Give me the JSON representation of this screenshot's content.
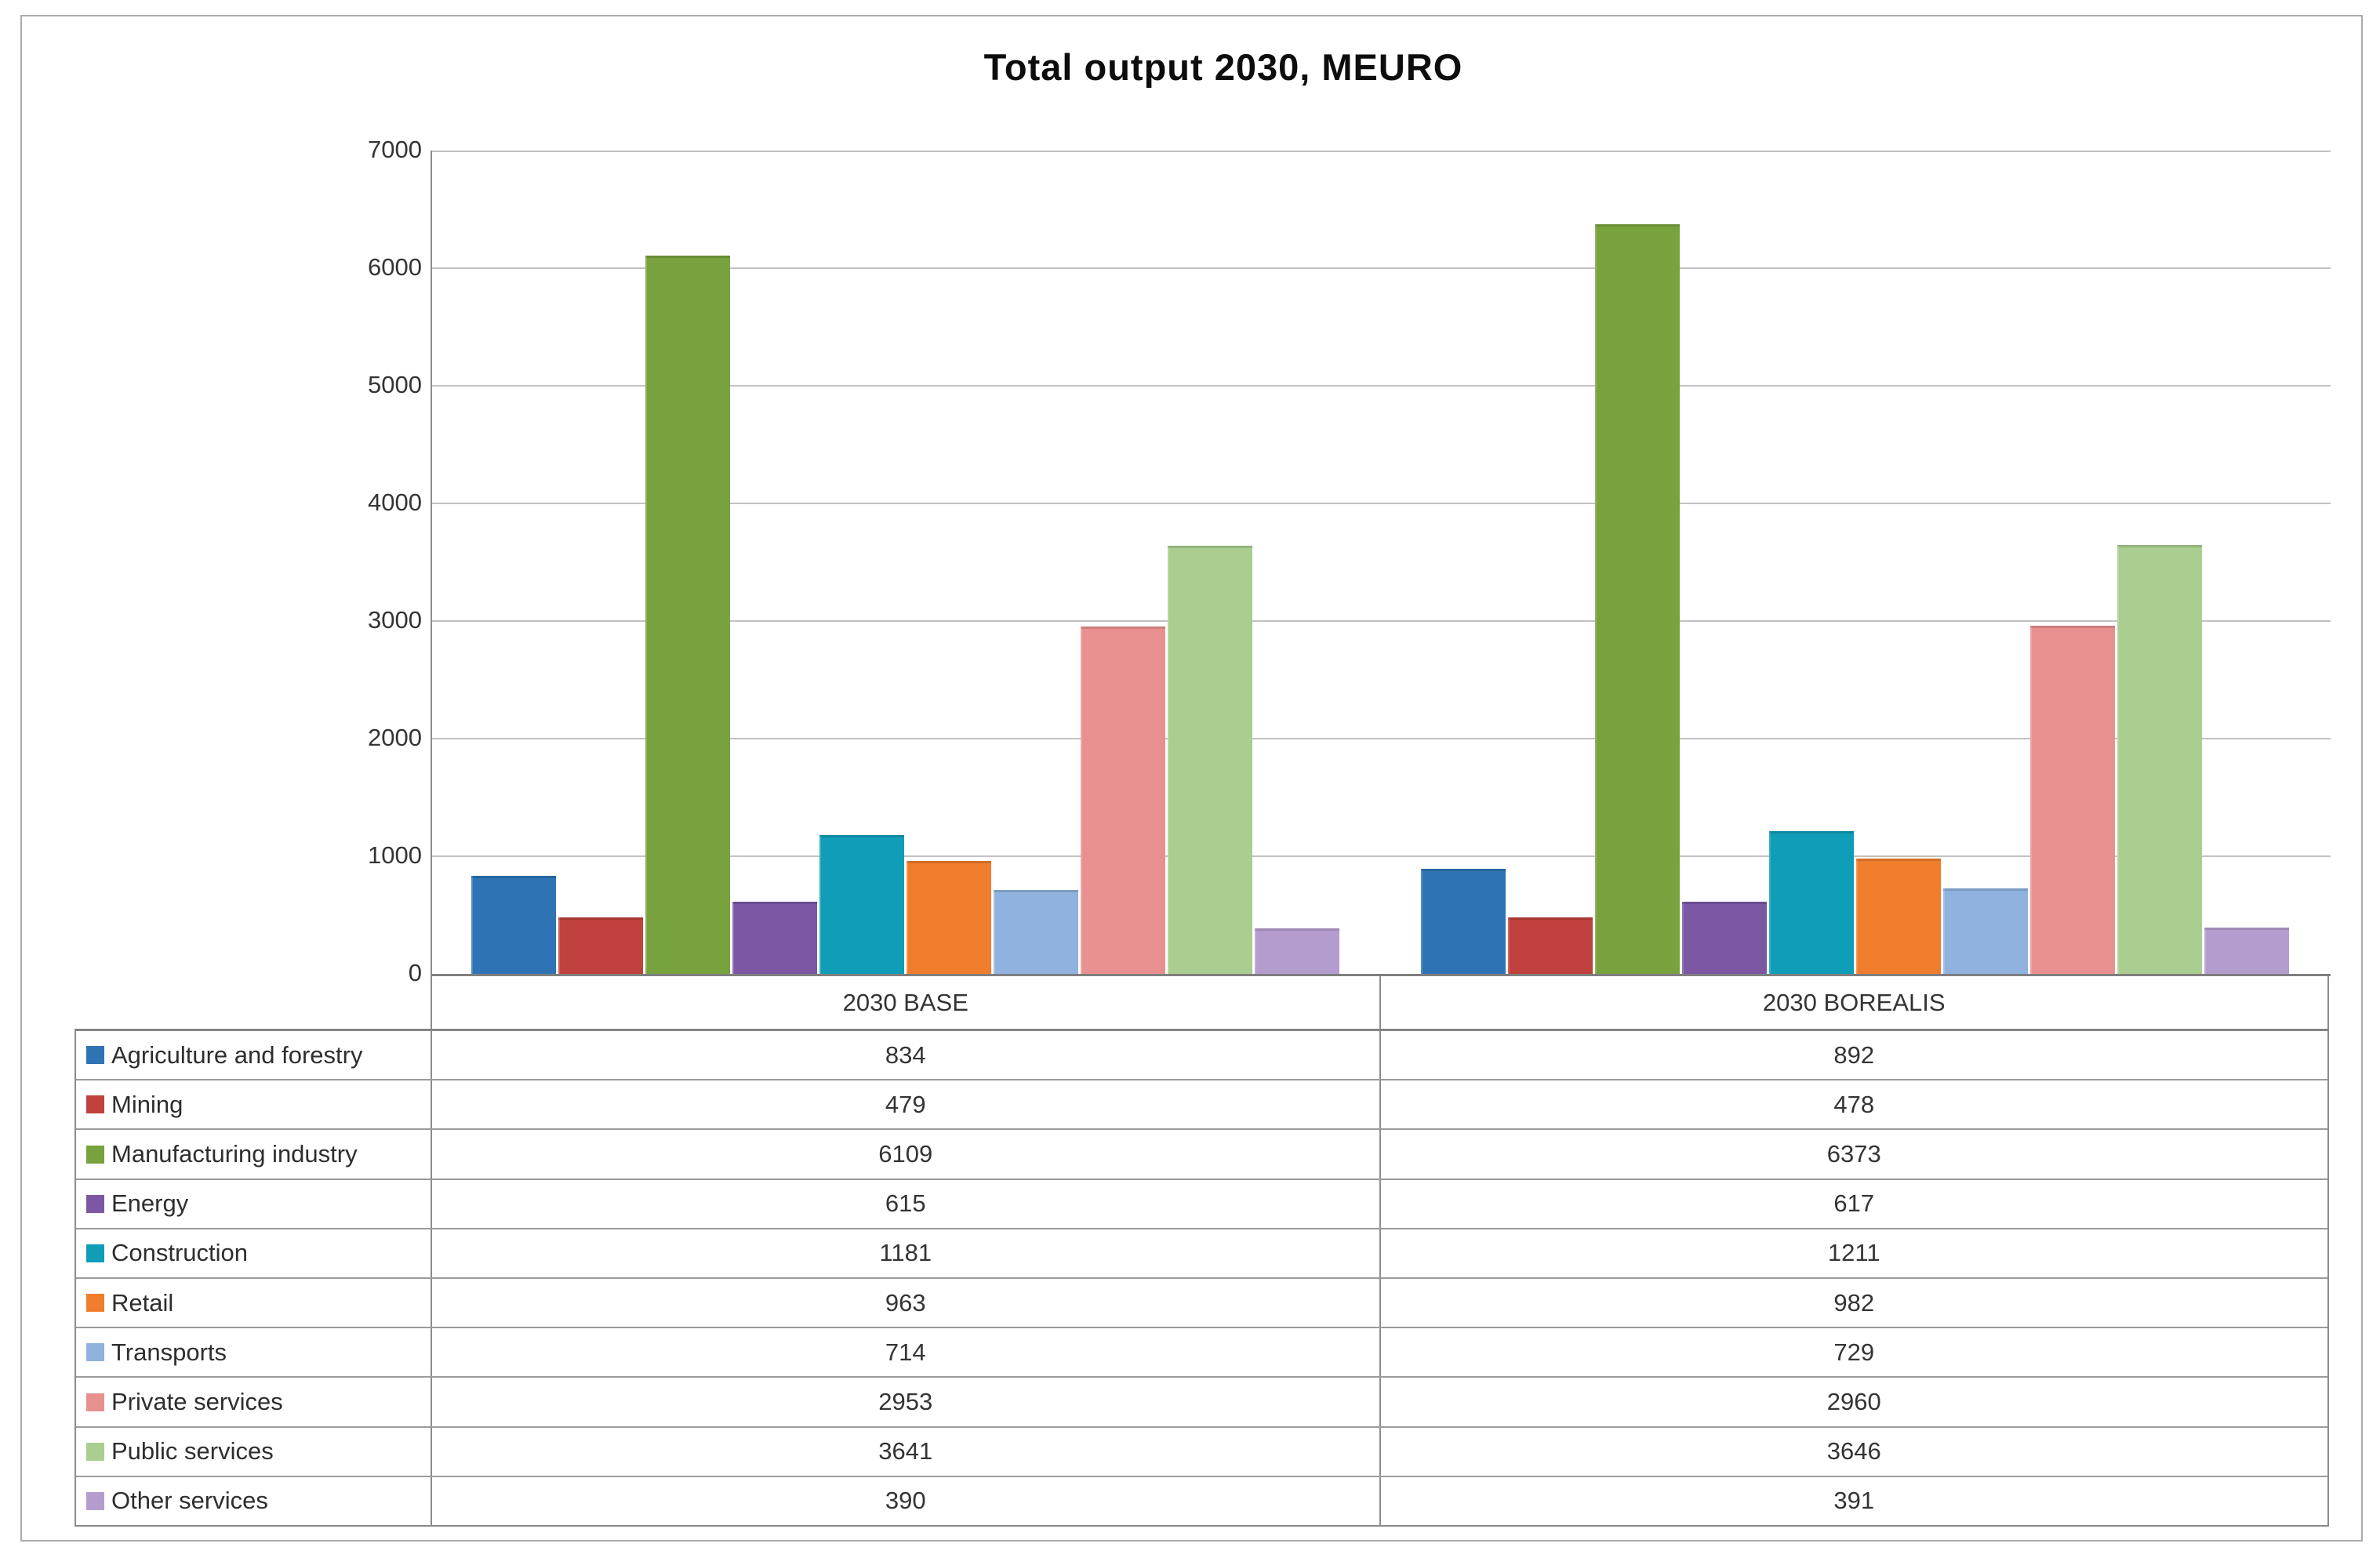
{
  "chart_data": {
    "type": "bar",
    "title": "Total output 2030, MEURO",
    "categories": [
      "2030 BASE",
      "2030 BOREALIS"
    ],
    "series": [
      {
        "name": "Agriculture and forestry",
        "color": "#2e74b4",
        "values": [
          834,
          892
        ]
      },
      {
        "name": "Mining",
        "color": "#c0413d",
        "values": [
          479,
          478
        ]
      },
      {
        "name": "Manufacturing industry",
        "color": "#77a23e",
        "values": [
          6109,
          6373
        ]
      },
      {
        "name": "Energy",
        "color": "#7b57a4",
        "values": [
          615,
          617
        ]
      },
      {
        "name": "Construction",
        "color": "#0f9db8",
        "values": [
          1181,
          1211
        ]
      },
      {
        "name": "Retail",
        "color": "#ef7d2c",
        "values": [
          963,
          982
        ]
      },
      {
        "name": "Transports",
        "color": "#8fb2de",
        "values": [
          714,
          729
        ]
      },
      {
        "name": "Private services",
        "color": "#e8908f",
        "values": [
          2953,
          2960
        ]
      },
      {
        "name": "Public services",
        "color": "#a9ce8f",
        "values": [
          3641,
          3646
        ]
      },
      {
        "name": "Other services",
        "color": "#b59cce",
        "values": [
          390,
          391
        ]
      }
    ],
    "y_axis": {
      "min": 0,
      "max": 7000,
      "step": 1000,
      "ticks": [
        7000,
        6000,
        5000,
        4000,
        3000,
        2000,
        1000,
        0
      ]
    },
    "grid": true,
    "legend_position": "data-table-left",
    "colors": {
      "gridline": "#c2c2c2",
      "axis_line": "#7f7f7f",
      "table_border": "#8c8c8c",
      "figure_border": "#ababab",
      "text": "#343434"
    }
  }
}
